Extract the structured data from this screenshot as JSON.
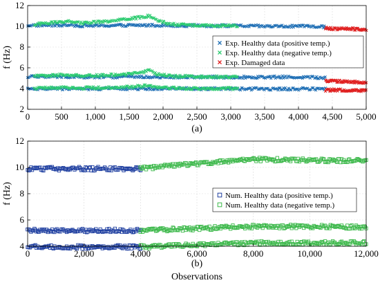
{
  "chart_data": [
    {
      "type": "scatter",
      "panel_label": "(a)",
      "ylabel": "f (Hz)",
      "xlabel": "",
      "xlim": [
        0,
        5000
      ],
      "ylim": [
        2,
        12
      ],
      "xticks": [
        0,
        500,
        1000,
        1500,
        2000,
        2500,
        3000,
        3500,
        4000,
        4500,
        5000
      ],
      "xtick_labels": [
        "0",
        "500",
        "1,000",
        "1,500",
        "2,000",
        "2,500",
        "3,000",
        "3,500",
        "4,000",
        "4,500",
        "5,000"
      ],
      "yticks": [
        2,
        4,
        6,
        8,
        10,
        12
      ],
      "ytick_labels": [
        "2",
        "4",
        "6",
        "8",
        "10",
        "12"
      ],
      "grid": true,
      "legend": {
        "placement": "center-right",
        "entries": [
          {
            "label": "Exp. Healthy data (positive temp.)",
            "color": "#1f6fb5",
            "marker": "x"
          },
          {
            "label": "Exp. Healthy data (negative temp.)",
            "color": "#2ecc71",
            "marker": "x"
          },
          {
            "label": "Exp. Damaged data",
            "color": "#e02020",
            "marker": "x"
          }
        ]
      },
      "series": [
        {
          "name": "Exp. Healthy data (positive temp.)",
          "color": "#1f6fb5",
          "marker": "x",
          "modes": [
            {
              "x": [
                0,
                500,
                1000,
                1500,
                2000,
                2500,
                3000,
                3500,
                4000,
                4400
              ],
              "y": [
                10.1,
                10.1,
                10.05,
                10.1,
                10.1,
                10.05,
                10.05,
                10.0,
                10.0,
                9.95
              ]
            },
            {
              "x": [
                0,
                500,
                1000,
                1500,
                2000,
                2500,
                3000,
                3500,
                4000,
                4400
              ],
              "y": [
                5.15,
                5.15,
                5.1,
                5.15,
                5.1,
                5.1,
                5.1,
                5.1,
                5.1,
                5.05
              ]
            },
            {
              "x": [
                0,
                500,
                1000,
                1500,
                2000,
                2500,
                3000,
                3500,
                4000,
                4400
              ],
              "y": [
                4.0,
                4.0,
                3.98,
                4.0,
                4.0,
                3.98,
                3.98,
                3.96,
                3.96,
                3.95
              ]
            }
          ]
        },
        {
          "name": "Exp. Healthy data (negative temp.)",
          "color": "#2ecc71",
          "marker": "x",
          "modes": [
            {
              "x": [
                100,
                400,
                600,
                800,
                1200,
                1500,
                1700,
                1800,
                1900,
                2100,
                2500,
                3100
              ],
              "y": [
                10.2,
                10.4,
                10.5,
                10.3,
                10.5,
                10.7,
                10.9,
                11.0,
                10.6,
                10.2,
                10.1,
                10.05
              ]
            },
            {
              "x": [
                100,
                400,
                600,
                800,
                1200,
                1500,
                1700,
                1800,
                1900,
                2100,
                2500,
                3100
              ],
              "y": [
                5.2,
                5.3,
                5.35,
                5.2,
                5.3,
                5.4,
                5.6,
                5.75,
                5.4,
                5.2,
                5.15,
                5.1
              ]
            },
            {
              "x": [
                100,
                400,
                600,
                800,
                1200,
                1500,
                1700,
                1800,
                1900,
                2100,
                2500,
                3100
              ],
              "y": [
                4.05,
                4.1,
                4.12,
                4.05,
                4.1,
                4.15,
                4.25,
                4.3,
                4.15,
                4.05,
                4.0,
                4.0
              ]
            }
          ]
        },
        {
          "name": "Exp. Damaged data",
          "color": "#e02020",
          "marker": "x",
          "modes": [
            {
              "x": [
                4400,
                4600,
                4800,
                5000
              ],
              "y": [
                9.8,
                9.75,
                9.75,
                9.7
              ]
            },
            {
              "x": [
                4400,
                4600,
                4800,
                5000
              ],
              "y": [
                4.75,
                4.7,
                4.65,
                4.55
              ]
            },
            {
              "x": [
                4400,
                4600,
                4800,
                5000
              ],
              "y": [
                3.85,
                3.85,
                3.82,
                3.8
              ]
            }
          ]
        }
      ]
    },
    {
      "type": "scatter",
      "panel_label": "(b)",
      "ylabel": "f (Hz)",
      "xlabel": "Observations",
      "xlim": [
        0,
        12000
      ],
      "ylim": [
        4,
        12
      ],
      "xticks": [
        0,
        2000,
        4000,
        6000,
        8000,
        10000,
        12000
      ],
      "xtick_labels": [
        "0",
        "2,000",
        "4,000",
        "6,000",
        "8,000",
        "10,000",
        "12,000"
      ],
      "yticks": [
        4,
        6,
        8,
        10,
        12
      ],
      "ytick_labels": [
        "4",
        "6",
        "8",
        "10",
        "12"
      ],
      "grid": true,
      "legend": {
        "placement": "center-right",
        "entries": [
          {
            "label": "Num. Healthy data (positive temp.)",
            "color": "#1f3fa0",
            "marker": "square"
          },
          {
            "label": "Num. Healthy data (negative temp.)",
            "color": "#3cb84a",
            "marker": "square"
          }
        ]
      },
      "series": [
        {
          "name": "Num. Healthy data (positive temp.)",
          "color": "#1f3fa0",
          "marker": "square",
          "modes": [
            {
              "x": [
                0,
                2000,
                4000
              ],
              "y": [
                9.9,
                9.9,
                9.9
              ]
            },
            {
              "x": [
                0,
                2000,
                4000
              ],
              "y": [
                5.2,
                5.2,
                5.2
              ]
            },
            {
              "x": [
                0,
                2000,
                4000
              ],
              "y": [
                3.95,
                3.95,
                3.95
              ]
            }
          ]
        },
        {
          "name": "Num. Healthy data (negative temp.)",
          "color": "#3cb84a",
          "marker": "square",
          "modes": [
            {
              "x": [
                4000,
                6000,
                8000,
                10000,
                12000
              ],
              "y": [
                9.9,
                10.3,
                10.6,
                10.55,
                10.5
              ]
            },
            {
              "x": [
                4000,
                6000,
                8000,
                10000,
                12000
              ],
              "y": [
                5.2,
                5.35,
                5.5,
                5.5,
                5.45
              ]
            },
            {
              "x": [
                4000,
                6000,
                8000,
                10000,
                12000
              ],
              "y": [
                3.95,
                4.1,
                4.25,
                4.25,
                4.25
              ]
            }
          ]
        }
      ]
    }
  ]
}
